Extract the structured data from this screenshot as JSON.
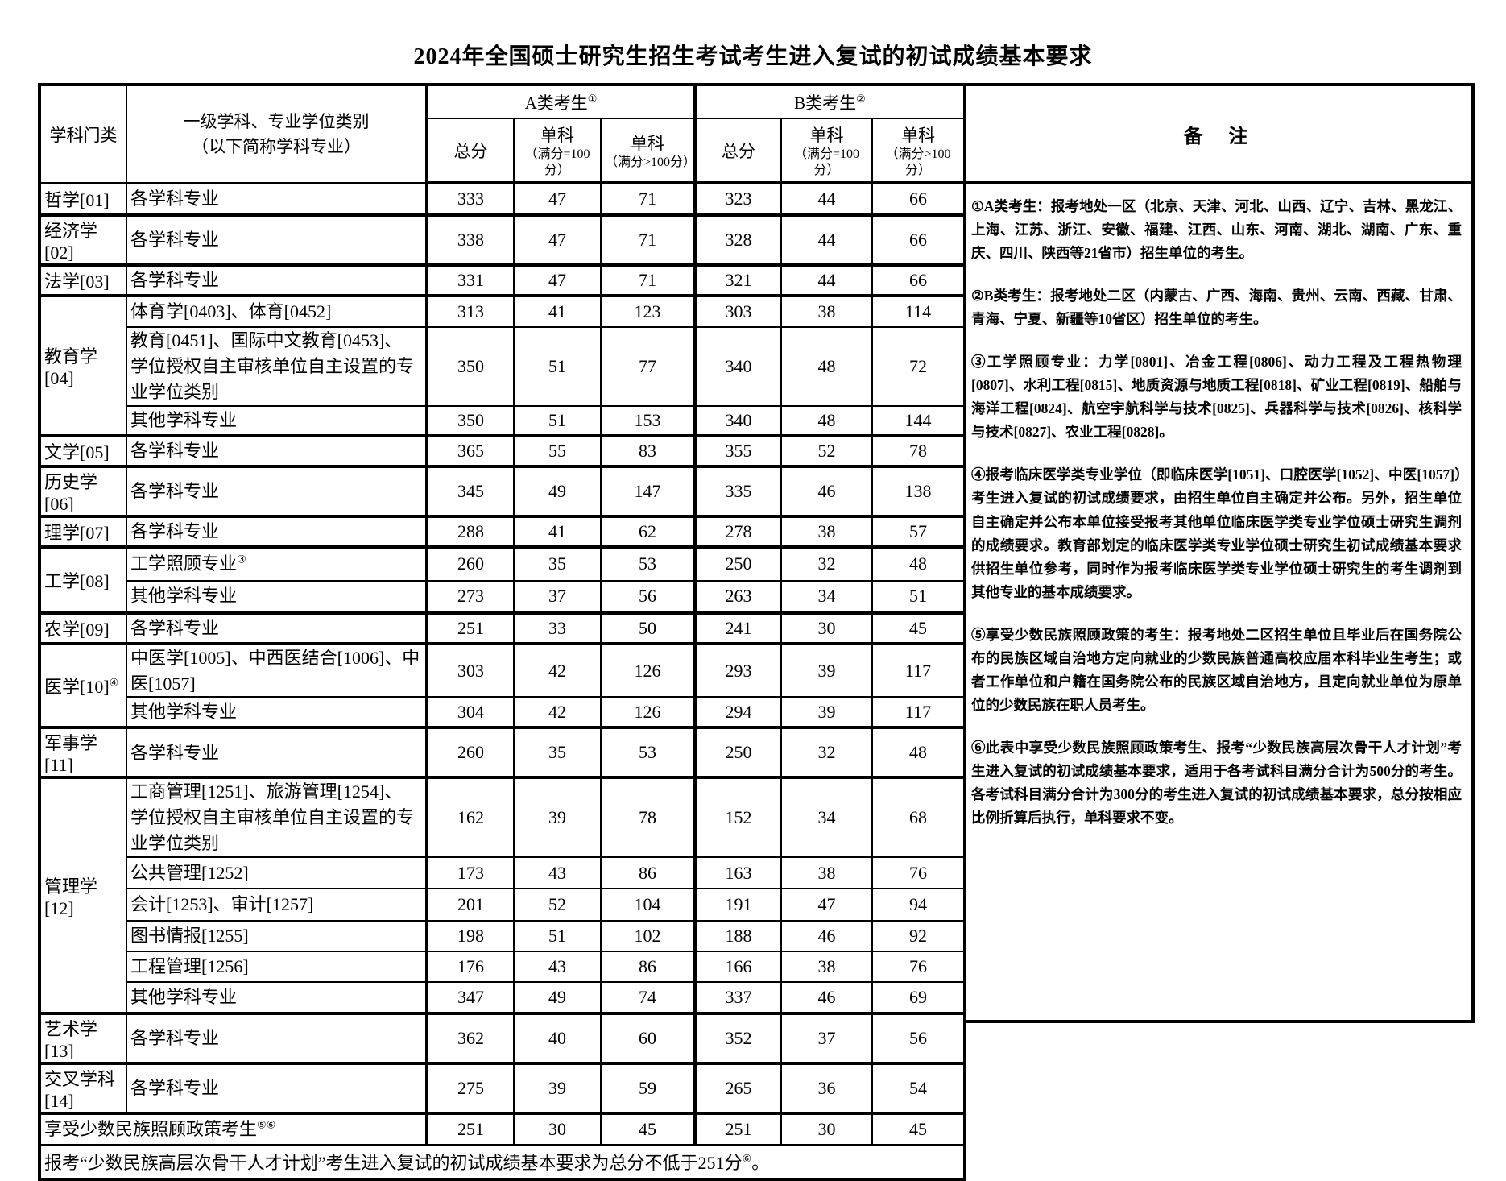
{
  "title": "2024年全国硕士研究生招生考试考生进入复试的初试成绩基本要求",
  "table": {
    "header": {
      "col_category": "学科门类",
      "col_major_line1": "一级学科、专业学位类别",
      "col_major_line2": "（以下简称学科专业）",
      "group_a": "A类考生",
      "group_a_sup": "①",
      "group_b": "B类考生",
      "group_b_sup": "②",
      "total": "总分",
      "single": "单科",
      "single_eq100_sub": "（满分=100分）",
      "single_gt100_sub": "（满分>100分）",
      "remark": "备　注"
    },
    "groups": [
      {
        "cat": "哲学[01]",
        "sup": "",
        "rows": [
          {
            "major": "各学科专业",
            "a": [
              333,
              47,
              71
            ],
            "b": [
              323,
              44,
              66
            ]
          }
        ]
      },
      {
        "cat": "经济学[02]",
        "sup": "",
        "rows": [
          {
            "major": "各学科专业",
            "a": [
              338,
              47,
              71
            ],
            "b": [
              328,
              44,
              66
            ]
          }
        ]
      },
      {
        "cat": "法学[03]",
        "sup": "",
        "rows": [
          {
            "major": "各学科专业",
            "a": [
              331,
              47,
              71
            ],
            "b": [
              321,
              44,
              66
            ]
          }
        ]
      },
      {
        "cat": "教育学[04]",
        "sup": "",
        "rows": [
          {
            "major": "体育学[0403]、体育[0452]",
            "a": [
              313,
              41,
              123
            ],
            "b": [
              303,
              38,
              114
            ]
          },
          {
            "major": "教育[0451]、国际中文教育[0453]、\n学位授权自主审核单位自主设置的专业学位类别",
            "a": [
              350,
              51,
              77
            ],
            "b": [
              340,
              48,
              72
            ]
          },
          {
            "major": "其他学科专业",
            "a": [
              350,
              51,
              153
            ],
            "b": [
              340,
              48,
              144
            ]
          }
        ]
      },
      {
        "cat": "文学[05]",
        "sup": "",
        "rows": [
          {
            "major": "各学科专业",
            "a": [
              365,
              55,
              83
            ],
            "b": [
              355,
              52,
              78
            ]
          }
        ]
      },
      {
        "cat": "历史学[06]",
        "sup": "",
        "rows": [
          {
            "major": "各学科专业",
            "a": [
              345,
              49,
              147
            ],
            "b": [
              335,
              46,
              138
            ]
          }
        ]
      },
      {
        "cat": "理学[07]",
        "sup": "",
        "rows": [
          {
            "major": "各学科专业",
            "a": [
              288,
              41,
              62
            ],
            "b": [
              278,
              38,
              57
            ]
          }
        ]
      },
      {
        "cat": "工学[08]",
        "sup": "",
        "rows": [
          {
            "major": "工学照顾专业",
            "majorSup": "③",
            "a": [
              260,
              35,
              53
            ],
            "b": [
              250,
              32,
              48
            ]
          },
          {
            "major": "其他学科专业",
            "a": [
              273,
              37,
              56
            ],
            "b": [
              263,
              34,
              51
            ]
          }
        ]
      },
      {
        "cat": "农学[09]",
        "sup": "",
        "rows": [
          {
            "major": "各学科专业",
            "a": [
              251,
              33,
              50
            ],
            "b": [
              241,
              30,
              45
            ]
          }
        ]
      },
      {
        "cat": "医学[10]",
        "sup": "④",
        "rows": [
          {
            "major": "中医学[1005]、中西医结合[1006]、中医[1057]",
            "a": [
              303,
              42,
              126
            ],
            "b": [
              293,
              39,
              117
            ]
          },
          {
            "major": "其他学科专业",
            "a": [
              304,
              42,
              126
            ],
            "b": [
              294,
              39,
              117
            ]
          }
        ]
      },
      {
        "cat": "军事学[11]",
        "sup": "",
        "rows": [
          {
            "major": "各学科专业",
            "a": [
              260,
              35,
              53
            ],
            "b": [
              250,
              32,
              48
            ]
          }
        ]
      },
      {
        "cat": "管理学[12]",
        "sup": "",
        "rows": [
          {
            "major": "工商管理[1251]、旅游管理[1254]、\n学位授权自主审核单位自主设置的专业学位类别",
            "a": [
              162,
              39,
              78
            ],
            "b": [
              152,
              34,
              68
            ]
          },
          {
            "major": "公共管理[1252]",
            "a": [
              173,
              43,
              86
            ],
            "b": [
              163,
              38,
              76
            ]
          },
          {
            "major": "会计[1253]、审计[1257]",
            "a": [
              201,
              52,
              104
            ],
            "b": [
              191,
              47,
              94
            ]
          },
          {
            "major": "图书情报[1255]",
            "a": [
              198,
              51,
              102
            ],
            "b": [
              188,
              46,
              92
            ]
          },
          {
            "major": "工程管理[1256]",
            "a": [
              176,
              43,
              86
            ],
            "b": [
              166,
              38,
              76
            ]
          },
          {
            "major": "其他学科专业",
            "a": [
              347,
              49,
              74
            ],
            "b": [
              337,
              46,
              69
            ]
          }
        ]
      },
      {
        "cat": "艺术学[13]",
        "sup": "",
        "rows": [
          {
            "major": "各学科专业",
            "a": [
              362,
              40,
              60
            ],
            "b": [
              352,
              37,
              56
            ]
          }
        ]
      },
      {
        "cat": "交叉学科[14]",
        "sup": "",
        "rows": [
          {
            "major": "各学科专业",
            "a": [
              275,
              39,
              59
            ],
            "b": [
              265,
              36,
              54
            ]
          }
        ]
      }
    ],
    "special_row": {
      "label": "享受少数民族照顾政策考生",
      "sup": "⑤⑥",
      "a": [
        251,
        30,
        45
      ],
      "b": [
        251,
        30,
        45
      ]
    },
    "footer": {
      "text": "报考“少数民族高层次骨干人才计划”考生进入复试的初试成绩基本要求为总分不低于251分",
      "sup": "⑥",
      "end": "。"
    }
  },
  "remarks": [
    {
      "sup": "①",
      "text": "A类考生：报考地处一区（北京、天津、河北、山西、辽宁、吉林、黑龙江、上海、江苏、浙江、安徽、福建、江西、山东、河南、湖北、湖南、广东、重庆、四川、陕西等21省市）招生单位的考生。"
    },
    {
      "sup": "②",
      "text": "B类考生：报考地处二区（内蒙古、广西、海南、贵州、云南、西藏、甘肃、青海、宁夏、新疆等10省区）招生单位的考生。"
    },
    {
      "sup": "③",
      "text": "工学照顾专业：力学[0801]、冶金工程[0806]、动力工程及工程热物理[0807]、水利工程[0815]、地质资源与地质工程[0818]、矿业工程[0819]、船舶与海洋工程[0824]、航空宇航科学与技术[0825]、兵器科学与技术[0826]、核科学与技术[0827]、农业工程[0828]。"
    },
    {
      "sup": "④",
      "text": "报考临床医学类专业学位（即临床医学[1051]、口腔医学[1052]、中医[1057]）考生进入复试的初试成绩要求，由招生单位自主确定并公布。另外，招生单位自主确定并公布本单位接受报考其他单位临床医学类专业学位硕士研究生调剂的成绩要求。教育部划定的临床医学类专业学位硕士研究生初试成绩基本要求供招生单位参考，同时作为报考临床医学类专业学位硕士研究生的考生调剂到其他专业的基本成绩要求。"
    },
    {
      "sup": "⑤",
      "text": "享受少数民族照顾政策的考生：报考地处二区招生单位且毕业后在国务院公布的民族区域自治地方定向就业的少数民族普通高校应届本科毕业生考生；或者工作单位和户籍在国务院公布的民族区域自治地方，且定向就业单位为原单位的少数民族在职人员考生。"
    },
    {
      "sup": "⑥",
      "text": "此表中享受少数民族照顾政策考生、报考“少数民族高层次骨干人才计划”考生进入复试的初试成绩基本要求，适用于各考试科目满分合计为500分的考生。各考试科目满分合计为300分的考生进入复试的初试成绩基本要求，总分按相应比例折算后执行，单科要求不变。"
    }
  ]
}
